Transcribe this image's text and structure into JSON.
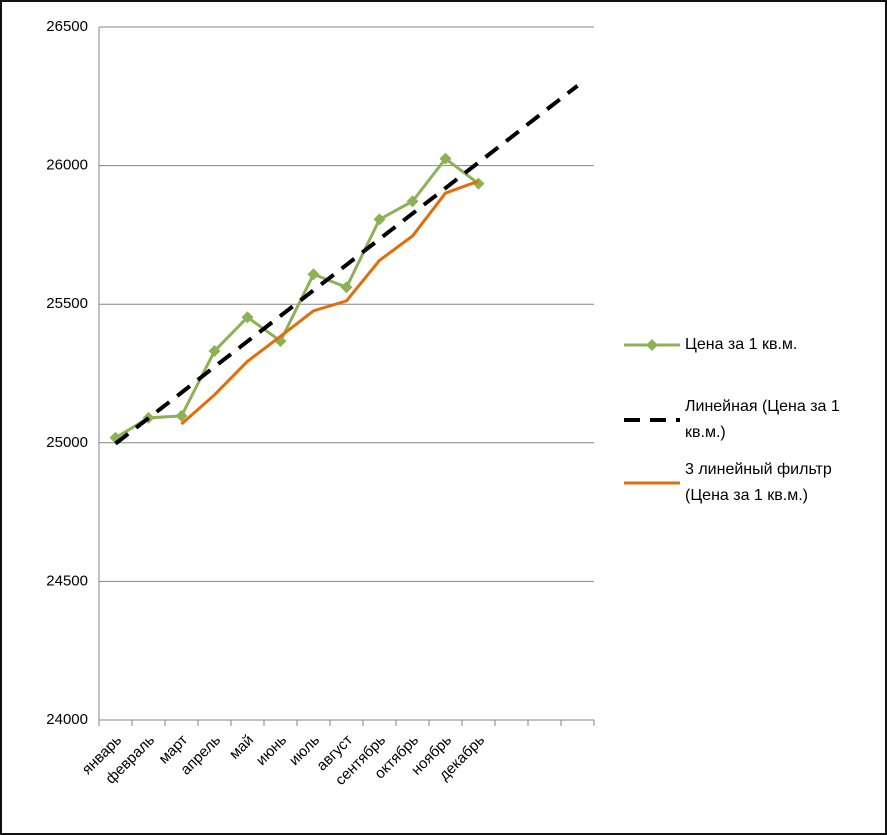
{
  "chart_data": {
    "type": "line",
    "categories": [
      "январь",
      "февраль",
      "март",
      "апрель",
      "май",
      "июнь",
      "июль",
      "август",
      "сентябрь",
      "октябрь",
      "ноябрь",
      "декабрь",
      null,
      null,
      null
    ],
    "series": [
      {
        "name": "Цена за 1 кв.м.",
        "color": "#8db255",
        "marker": "diamond",
        "dash": false,
        "values": [
          25018,
          25090,
          25097,
          25331,
          25453,
          25367,
          25608,
          25561,
          25806,
          25871,
          26025,
          25935,
          null,
          null,
          null
        ]
      },
      {
        "name": "Линейная (Цена за 1 кв.м.)",
        "color": "#000000",
        "marker": "none",
        "dash": true,
        "values": [
          24997,
          25089,
          25181,
          25274,
          25366,
          25458,
          25550,
          25642,
          25735,
          25827,
          25919,
          26011,
          26103,
          26196,
          26288
        ]
      },
      {
        "name": "3 линейный фильтр (Цена за 1 кв.м.)",
        "color": "#e46c0a",
        "marker": "none",
        "dash": false,
        "values": [
          null,
          null,
          25068,
          25173,
          25294,
          25384,
          25476,
          25512,
          25658,
          25746,
          25901,
          25944,
          null,
          null,
          null
        ]
      }
    ],
    "ylim": [
      24000,
      26500
    ],
    "yticks": [
      24000,
      24500,
      25000,
      25500,
      26000,
      26500
    ],
    "grid": true,
    "legend": "right"
  }
}
